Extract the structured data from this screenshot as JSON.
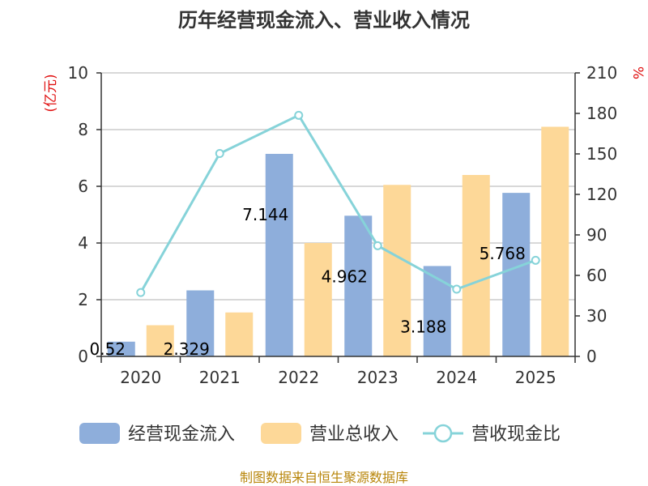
{
  "chart_data": {
    "type": "bar",
    "title": "历年经营现金流入、营业收入情况",
    "categories": [
      "2020",
      "2021",
      "2022",
      "2023",
      "2024",
      "2025"
    ],
    "series": [
      {
        "name": "经营现金流入",
        "type": "bar",
        "axis": "left",
        "color": "#8eaedb",
        "values": [
          0.52,
          2.329,
          7.144,
          4.962,
          3.188,
          5.768
        ],
        "labels": [
          "0.52",
          "2.329",
          "7.144",
          "4.962",
          "3.188",
          "5.768"
        ]
      },
      {
        "name": "营业总收入",
        "type": "bar",
        "axis": "left",
        "color": "#fdd898",
        "values": [
          1.1,
          1.55,
          4.0,
          6.05,
          6.4,
          8.1
        ]
      },
      {
        "name": "营收现金比",
        "type": "line",
        "axis": "right",
        "color": "#86d3d9",
        "values": [
          47.3,
          150.3,
          178.6,
          82.0,
          49.8,
          71.2
        ]
      }
    ],
    "left_axis": {
      "unit": "(亿元)",
      "range": [
        0,
        10
      ],
      "ticks": [
        "0",
        "2",
        "4",
        "6",
        "8",
        "10"
      ]
    },
    "right_axis": {
      "unit": "%",
      "range": [
        0,
        210
      ],
      "ticks": [
        "0",
        "30",
        "60",
        "90",
        "120",
        "150",
        "180",
        "210"
      ]
    },
    "grid": true,
    "legend_position": "bottom",
    "source": "制图数据来自恒生聚源数据库"
  }
}
